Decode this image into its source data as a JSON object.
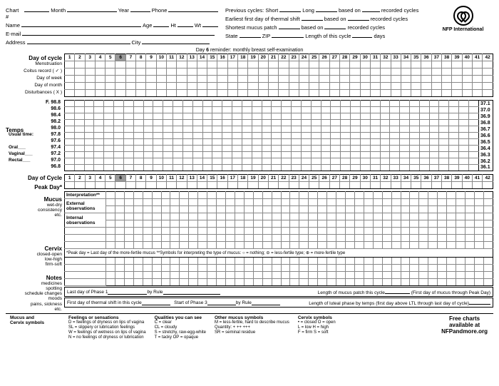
{
  "hdr": {
    "chart": "Chart #",
    "month": "Month",
    "year": "Year",
    "phone": "Phone",
    "name": "Name",
    "age": "Age",
    "ht": "Ht",
    "wt": "Wt",
    "email": "E-mail",
    "address": "Address",
    "city": "City",
    "state": "State",
    "zip": "ZIP",
    "prev": "Previous cycles: Short",
    "long": "Long",
    "based": "based on",
    "rec": "recorded cycles",
    "earliest": "Earliest first day of thermal shift",
    "shortmuc": "Shortest mucus patch",
    "len": "Length of this cycle",
    "days": "days",
    "brand": "NFP International"
  },
  "rem": "Day 6 reminder: monthly breast self-examination",
  "doc": "Day of cycle",
  "doc2": "Day of Cycle",
  "rows1": [
    "Menstruation",
    "Coitus record ( ✓ )",
    "Day of week",
    "Day of month",
    "Disturbances ( X )"
  ],
  "tempsF": [
    "98.8",
    "98.6",
    "98.4",
    "98.2",
    "98.0",
    "97.8",
    "97.6",
    "97.4",
    "97.2",
    "97.0",
    "96.8"
  ],
  "tempsC": [
    "37.1",
    "37.0",
    "36.9",
    "36.8",
    "36.7",
    "36.6",
    "36.5",
    "36.4",
    "36.3",
    "36.2",
    "36.1"
  ],
  "tempLbl": "Temps",
  "usual": "Usual time:",
  "oral": "Oral",
  "vag": "Vaginal",
  "rect": "Rectal",
  "F": "F.",
  "peak": "Peak Day*",
  "mucus": "Mucus",
  "mucdesc": "wet-dry\nconsistency\netc.",
  "interp": "Interpretation**",
  "ext": "External\nobservations",
  "int": "Internal\nobservations",
  "cervix": "Cervix",
  "cervdesc": "closed-open\nlow-high\nfirm-soft",
  "notes": "Notes",
  "notesdesc": "medicines\nspotting\nschedule changes\nmoods\npains, sickness\netc.",
  "pkrow": "*Peak day = Last day of the more-fertile mucus    **Symbols for interpreting the type of mucus:    ○ = nothing;    ⊖ = less-fertile type;    ⊕ = more-fertile type",
  "p1a": "Last day of Phase 1",
  "p1b": "by Rule",
  "p1c": "Length of mucus patch this cycle",
  "p1d": "(First day of mucus through Peak Day)",
  "p2a": "First day of thermal shift in this cycle",
  "p2b": "Start of Phase 3",
  "p2c": "by Rule",
  "p2d": "Length of luteal phase by temps (first day above LTL through last day of cycle)",
  "leg": {
    "h": "Mucus and\nCervix symbols",
    "c1h": "Feelings or sensations",
    "c1": "D = feelings of dryness on lips of vagina\nSL = slippery or lubrication feelings\nW = feelings of wetness on lips of vagina\nN = no feelings of dryness or lubrication",
    "c2h": "Qualities you can see",
    "c2": "C = clear\nCL = cloudy\nS = stretchy, raw-egg-white\nT = tacky    OP = opaque",
    "c3h": "Other mucus symbols",
    "c3": "M = less-fertile, hard to describe mucus\nQuantity: +  ++  +++\nSR = seminal residue",
    "c4h": "Cervix symbols",
    "c4": "• = closed   O = open\nL = low    H = high\nF = firm    S = soft",
    "free": "Free charts\navailable at\nNFPandmore.org"
  },
  "days": 42,
  "hlDay": 6
}
